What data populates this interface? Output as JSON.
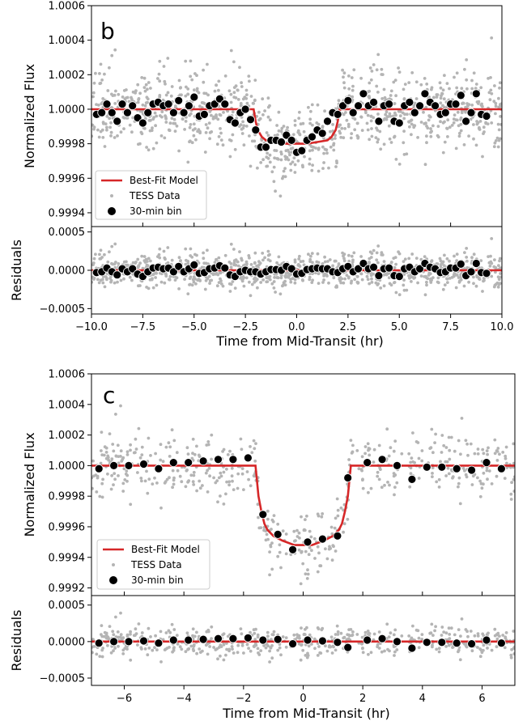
{
  "chart_data": [
    {
      "panel": "b",
      "type": "scatter",
      "xlabel": "Time from Mid-Transit (hr)",
      "top": {
        "ylabel": "Normalized Flux",
        "xlim": [
          -10,
          10
        ],
        "ylim": [
          0.99932,
          1.0006
        ],
        "yticks": [
          "1.0006",
          "1.0004",
          "1.0002",
          "1.0000",
          "0.9998",
          "0.9996",
          "0.9994"
        ],
        "ytick_values": [
          1.0006,
          1.0004,
          1.0002,
          1.0,
          0.9998,
          0.9996,
          0.9994
        ],
        "legend": [
          "Best-Fit Model",
          "TESS Data",
          "30-min bin"
        ],
        "legend_position": "lower-left",
        "model": {
          "name": "Best-Fit Model",
          "color": "#d62728",
          "x": [
            -10,
            -2.1,
            -2.0,
            -1.9,
            -1.7,
            -1.5,
            -1.0,
            -0.5,
            0,
            0.5,
            1.0,
            1.5,
            1.7,
            1.9,
            2.0,
            2.1,
            10
          ],
          "y": [
            1.0,
            1.0,
            0.99993,
            0.99988,
            0.99984,
            0.99982,
            0.99981,
            0.9998,
            0.9998,
            0.9998,
            0.99981,
            0.99982,
            0.99984,
            0.99988,
            0.99993,
            1.0,
            1.0
          ]
        },
        "binned": {
          "name": "30-min bin",
          "x": [
            -9.75,
            -9.5,
            -9.25,
            -9.0,
            -8.75,
            -8.5,
            -8.25,
            -8.0,
            -7.75,
            -7.5,
            -7.25,
            -7.0,
            -6.75,
            -6.5,
            -6.25,
            -6.0,
            -5.75,
            -5.5,
            -5.25,
            -5.0,
            -4.75,
            -4.5,
            -4.25,
            -4.0,
            -3.75,
            -3.5,
            -3.25,
            -3.0,
            -2.75,
            -2.5,
            -2.25,
            -2.0,
            -1.75,
            -1.5,
            -1.25,
            -1.0,
            -0.75,
            -0.5,
            -0.25,
            0.0,
            0.25,
            0.5,
            0.75,
            1.0,
            1.25,
            1.5,
            1.75,
            2.0,
            2.25,
            2.5,
            2.75,
            3.0,
            3.25,
            3.5,
            3.75,
            4.0,
            4.25,
            4.5,
            4.75,
            5.0,
            5.25,
            5.5,
            5.75,
            6.0,
            6.25,
            6.5,
            6.75,
            7.0,
            7.25,
            7.5,
            7.75,
            8.0,
            8.25,
            8.5,
            8.75,
            9.0,
            9.25
          ],
          "y": [
            0.99997,
            0.99998,
            1.00003,
            0.99998,
            0.99993,
            1.00003,
            0.99998,
            1.00002,
            0.99995,
            0.99992,
            0.99998,
            1.00003,
            1.00004,
            1.00002,
            1.00003,
            0.99998,
            1.00005,
            0.99998,
            1.00002,
            1.00007,
            0.99996,
            0.99997,
            1.00002,
            1.00003,
            1.00006,
            1.00003,
            0.99994,
            0.99992,
            0.99998,
            1.0,
            0.99994,
            0.99988,
            0.99978,
            0.99978,
            0.99982,
            0.99982,
            0.99981,
            0.99985,
            0.99982,
            0.99975,
            0.99976,
            0.99982,
            0.99984,
            0.99988,
            0.99986,
            0.99993,
            0.99998,
            0.99997,
            1.00002,
            1.00005,
            0.99998,
            1.00002,
            1.00009,
            1.00002,
            1.00004,
            0.99993,
            1.00002,
            1.00003,
            0.99993,
            0.99992,
            1.00002,
            1.00004,
            0.99998,
            1.00002,
            1.00009,
            1.00004,
            1.00002,
            0.99997,
            0.99998,
            1.00003,
            1.00003,
            1.00008,
            0.99993,
            0.99998,
            1.00009,
            0.99997,
            0.99996
          ]
        }
      },
      "bottom": {
        "ylabel": "Residuals",
        "ylim": [
          -0.00057,
          0.00057
        ],
        "yticks": [
          "0.0005",
          "0.0000",
          "−0.0005"
        ],
        "ytick_values": [
          0.0005,
          0.0,
          -0.0005
        ],
        "binned_y": [
          -3e-05,
          -2e-05,
          3e-05,
          -2e-05,
          -6e-05,
          2e-05,
          -2e-05,
          2e-05,
          -5e-05,
          -8e-05,
          -2e-05,
          3e-05,
          4e-05,
          2e-05,
          3e-05,
          -2e-05,
          5e-05,
          -2e-05,
          2e-05,
          7e-05,
          -4e-05,
          -3e-05,
          2e-05,
          3e-05,
          6e-05,
          3e-05,
          -6e-05,
          -8e-05,
          -2e-05,
          0.0,
          -2e-05,
          -2e-05,
          -5e-05,
          -2e-05,
          1e-05,
          1e-05,
          0.0,
          5e-05,
          2e-05,
          -5e-05,
          -4e-05,
          1e-05,
          2e-05,
          3e-05,
          2e-05,
          2e-05,
          -2e-05,
          -3e-05,
          2e-05,
          5e-05,
          -2e-05,
          2e-05,
          9e-05,
          2e-05,
          4e-05,
          -7e-05,
          2e-05,
          3e-05,
          -7e-05,
          -8e-05,
          2e-05,
          4e-05,
          -2e-05,
          2e-05,
          9e-05,
          4e-05,
          2e-05,
          -3e-05,
          -2e-05,
          3e-05,
          3e-05,
          8e-05,
          -7e-05,
          -2e-05,
          9e-05,
          -3e-05,
          -4e-05
        ]
      },
      "xticks": [
        "−10.0",
        "−7.5",
        "−5.0",
        "−2.5",
        "0.0",
        "2.5",
        "5.0",
        "7.5",
        "10.0"
      ],
      "xtick_values": [
        -10,
        -7.5,
        -5,
        -2.5,
        0,
        2.5,
        5,
        7.5,
        10
      ]
    },
    {
      "panel": "c",
      "type": "scatter",
      "xlabel": "Time from Mid-Transit (hr)",
      "top": {
        "ylabel": "Normalized Flux",
        "xlim": [
          -7.1,
          7.1
        ],
        "ylim": [
          0.99915,
          1.0006
        ],
        "yticks": [
          "1.0006",
          "1.0004",
          "1.0002",
          "1.0000",
          "0.9998",
          "0.9996",
          "0.9994",
          "0.9992"
        ],
        "ytick_values": [
          1.0006,
          1.0004,
          1.0002,
          1.0,
          0.9998,
          0.9996,
          0.9994,
          0.9992
        ],
        "legend": [
          "Best-Fit Model",
          "TESS Data",
          "30-min bin"
        ],
        "legend_position": "lower-left",
        "model": {
          "name": "Best-Fit Model",
          "color": "#d62728",
          "x": [
            -7.1,
            -1.6,
            -1.5,
            -1.4,
            -1.3,
            -1.2,
            -1.0,
            -0.7,
            -0.3,
            0,
            0.3,
            0.7,
            1.0,
            1.2,
            1.3,
            1.4,
            1.5,
            1.6,
            7.1
          ],
          "y": [
            1.0,
            1.0,
            0.9998,
            0.9997,
            0.99962,
            0.99958,
            0.99954,
            0.99951,
            0.99948,
            0.99948,
            0.99948,
            0.99951,
            0.99954,
            0.99958,
            0.99962,
            0.9997,
            0.9998,
            1.0,
            1.0
          ]
        },
        "binned": {
          "name": "30-min bin",
          "x": [
            -6.85,
            -6.35,
            -5.85,
            -5.35,
            -4.85,
            -4.35,
            -3.85,
            -3.35,
            -2.85,
            -2.35,
            -1.85,
            -1.35,
            -0.85,
            -0.35,
            0.15,
            0.65,
            1.15,
            1.5,
            2.15,
            2.65,
            3.15,
            3.65,
            4.15,
            4.65,
            5.15,
            5.65,
            6.15,
            6.65
          ],
          "y": [
            0.99998,
            1.0,
            1.0,
            1.00001,
            0.99998,
            1.00002,
            1.00002,
            1.00003,
            1.00004,
            1.00004,
            1.00005,
            0.99968,
            0.99955,
            0.99945,
            0.9995,
            0.99952,
            0.99954,
            0.99992,
            1.00002,
            1.00004,
            1.0,
            0.99991,
            0.99999,
            0.99999,
            0.99998,
            0.99997,
            1.00002,
            0.99998
          ]
        }
      },
      "bottom": {
        "ylabel": "Residuals",
        "ylim": [
          -0.0006,
          0.00063
        ],
        "yticks": [
          "0.0005",
          "0.0000",
          "−0.0005"
        ],
        "ytick_values": [
          0.0005,
          0.0,
          -0.0005
        ],
        "binned_y": [
          -2e-05,
          0.0,
          0.0,
          1e-05,
          -2e-05,
          2e-05,
          2e-05,
          3e-05,
          4e-05,
          4e-05,
          5e-05,
          2e-05,
          3e-05,
          -3e-05,
          2e-05,
          1e-05,
          -1e-05,
          -8e-05,
          2e-05,
          4e-05,
          0.0,
          -9e-05,
          -1e-05,
          -1e-05,
          -2e-05,
          -3e-05,
          2e-05,
          -2e-05
        ]
      },
      "xticks": [
        "−6",
        "−4",
        "−2",
        "0",
        "2",
        "4",
        "6"
      ],
      "xtick_values": [
        -6,
        -4,
        -2,
        0,
        2,
        4,
        6
      ]
    }
  ],
  "colors": {
    "model": "#d62728",
    "raw": "#b4b4b4",
    "binned": "#000000"
  }
}
